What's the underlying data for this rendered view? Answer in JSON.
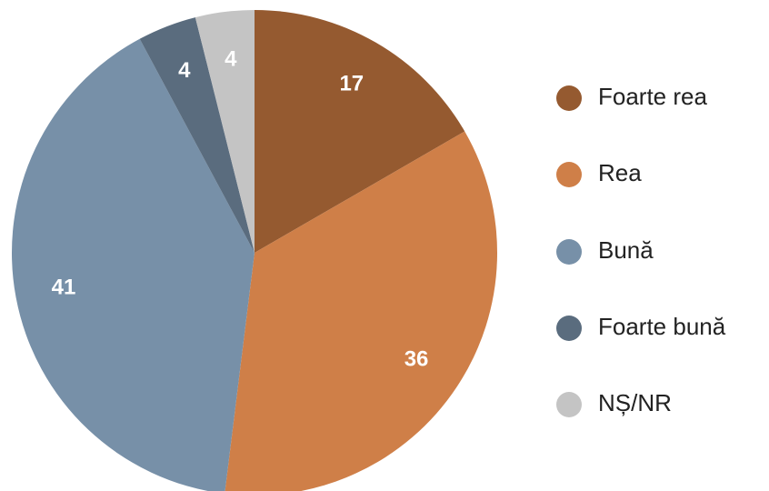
{
  "chart_data": {
    "type": "pie",
    "categories": [
      "Foarte rea",
      "Rea",
      "Bună",
      "Foarte bună",
      "NȘ/NR"
    ],
    "values": [
      17,
      36,
      41,
      4,
      4
    ],
    "colors": [
      "#955a30",
      "#cf7f48",
      "#7790a8",
      "#5a6c7e",
      "#c4c4c4"
    ],
    "legend": "right"
  }
}
